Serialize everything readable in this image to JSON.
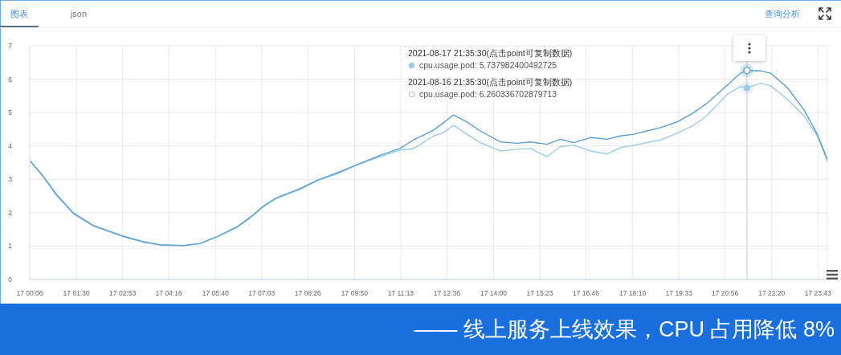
{
  "chart_data": {
    "type": "line",
    "x": [
      "2021-08-17T00:06",
      "2021-08-17T00:30",
      "2021-08-17T00:54",
      "2021-08-17T01:24",
      "2021-08-17T02:00",
      "2021-08-17T02:54",
      "2021-08-17T03:30",
      "2021-08-17T04:00",
      "2021-08-17T04:42",
      "2021-08-17T05:12",
      "2021-08-17T05:42",
      "2021-08-17T06:18",
      "2021-08-17T06:42",
      "2021-08-17T07:06",
      "2021-08-17T07:30",
      "2021-08-17T08:12",
      "2021-08-17T08:42",
      "2021-08-17T09:24",
      "2021-08-17T10:00",
      "2021-08-17T10:36",
      "2021-08-17T11:12",
      "2021-08-17T11:36",
      "2021-08-17T12:12",
      "2021-08-17T12:30",
      "2021-08-17T12:48",
      "2021-08-17T13:12",
      "2021-08-17T13:36",
      "2021-08-17T14:12",
      "2021-08-17T14:42",
      "2021-08-17T15:06",
      "2021-08-17T15:36",
      "2021-08-17T16:00",
      "2021-08-17T16:24",
      "2021-08-17T16:54",
      "2021-08-17T17:24",
      "2021-08-17T17:48",
      "2021-08-17T18:12",
      "2021-08-17T18:36",
      "2021-08-17T19:00",
      "2021-08-17T19:30",
      "2021-08-17T20:00",
      "2021-08-17T20:24",
      "2021-08-17T21:00",
      "2021-08-17T21:24",
      "2021-08-17T21:35:30",
      "2021-08-17T22:00",
      "2021-08-17T22:18",
      "2021-08-17T22:48",
      "2021-08-17T23:18",
      "2021-08-17T23:42",
      "2021-08-18T00:00"
    ],
    "series": [
      {
        "color": "#9ccbe8",
        "values": [
          3.55,
          3.08,
          2.52,
          1.97,
          1.6,
          1.28,
          1.12,
          1.03,
          1.01,
          1.07,
          1.27,
          1.55,
          1.84,
          2.18,
          2.43,
          2.7,
          2.95,
          3.2,
          3.46,
          3.68,
          3.88,
          3.92,
          4.3,
          4.4,
          4.62,
          4.35,
          4.1,
          3.85,
          3.9,
          3.93,
          3.68,
          3.98,
          4.02,
          3.85,
          3.76,
          3.95,
          4.02,
          4.1,
          4.18,
          4.38,
          4.62,
          4.92,
          5.55,
          5.78,
          5.74,
          5.88,
          5.8,
          5.4,
          4.9,
          4.3,
          3.55
        ]
      },
      {
        "color": "#5a9fd4",
        "values": [
          3.57,
          3.1,
          2.55,
          2.0,
          1.62,
          1.3,
          1.13,
          1.04,
          1.02,
          1.08,
          1.28,
          1.57,
          1.86,
          2.2,
          2.45,
          2.72,
          2.97,
          3.23,
          3.48,
          3.72,
          3.93,
          4.18,
          4.47,
          4.7,
          4.93,
          4.72,
          4.45,
          4.12,
          4.08,
          4.12,
          4.05,
          4.2,
          4.1,
          4.25,
          4.2,
          4.3,
          4.35,
          4.45,
          4.55,
          4.72,
          5.0,
          5.28,
          5.82,
          6.18,
          6.26,
          6.25,
          6.18,
          5.75,
          5.08,
          4.35,
          3.6
        ]
      }
    ],
    "xlim": [
      "2021-08-17T00:06",
      "2021-08-18T00:00"
    ],
    "xticks": [
      {
        "value": "2021-08-17T00:06",
        "label": "17 00:06"
      },
      {
        "value": "2021-08-17T01:30",
        "label": "17 01:30"
      },
      {
        "value": "2021-08-17T02:53",
        "label": "17 02:53"
      },
      {
        "value": "2021-08-17T04:16",
        "label": "17 04:16"
      },
      {
        "value": "2021-08-17T05:40",
        "label": "17 05:40"
      },
      {
        "value": "2021-08-17T07:03",
        "label": "17 07:03"
      },
      {
        "value": "2021-08-17T08:26",
        "label": "17 08:26"
      },
      {
        "value": "2021-08-17T09:50",
        "label": "17 09:50"
      },
      {
        "value": "2021-08-17T11:13",
        "label": "17 11:13"
      },
      {
        "value": "2021-08-17T12:36",
        "label": "17 12:36"
      },
      {
        "value": "2021-08-17T14:00",
        "label": "17 14:00"
      },
      {
        "value": "2021-08-17T15:23",
        "label": "17 15:23"
      },
      {
        "value": "2021-08-17T16:46",
        "label": "17 16:46"
      },
      {
        "value": "2021-08-17T18:10",
        "label": "17 18:10"
      },
      {
        "value": "2021-08-17T19:33",
        "label": "17 19:33"
      },
      {
        "value": "2021-08-17T20:56",
        "label": "17 20:56"
      },
      {
        "value": "2021-08-17T22:20",
        "label": "17 22:20"
      },
      {
        "value": "2021-08-17T23:43",
        "label": "17 23:43"
      }
    ],
    "ylim": [
      0,
      7
    ],
    "yticks": [
      0,
      1,
      2,
      3,
      4,
      5,
      6,
      7
    ],
    "grid": true,
    "marker": "none",
    "ref_lines": [
      {
        "axis": "x",
        "value": "2021-08-17T21:35:30",
        "color": "#cccccc"
      }
    ],
    "annotations": [
      "图表",
      "json",
      "查询分析",
      "2021-08-17 21:35:30(点击point可复制数据)",
      "cpu.usage.pod: 5.737982400492725",
      "2021-08-16 21:35:30(点击point可复制数据)",
      "cpu.usage.pod: 6.260336702879713",
      "—— 线上服务上线效果，CPU 占用降低 8%"
    ]
  }
}
